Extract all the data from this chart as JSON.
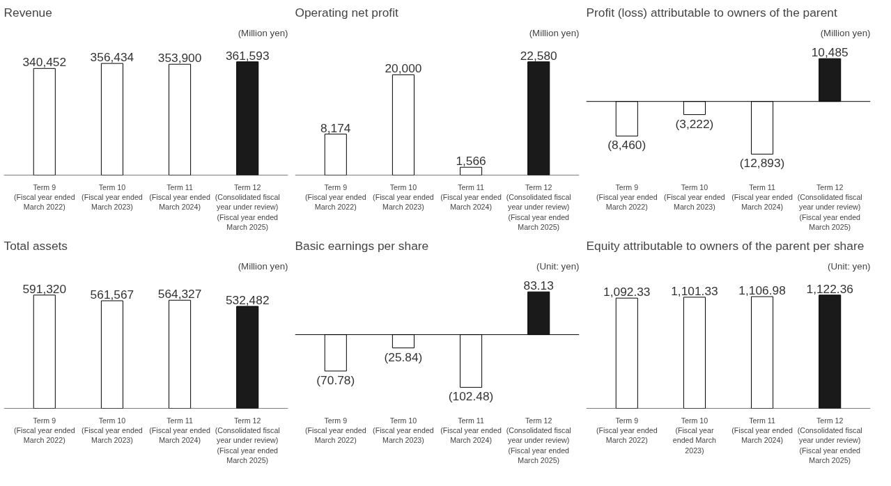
{
  "chart_data": [
    {
      "type": "bar",
      "title": "Revenue",
      "subtitle": "(Million yen)",
      "categories": [
        "Term 9\n(Fiscal year ended\nMarch 2022)",
        "Term 10\n(Fiscal year ended\nMarch 2023)",
        "Term 11\n(Fiscal year ended\nMarch 2024)",
        "Term 12\n(Consolidated fiscal\nyear under review)\n(Fiscal year ended\nMarch 2025)"
      ],
      "values": [
        340452,
        356434,
        353900,
        361593
      ],
      "value_labels": [
        "340,452",
        "356,434",
        "353,900",
        "361,593"
      ],
      "colors": [
        "#ffffff",
        "#ffffff",
        "#ffffff",
        "#1a1a1a"
      ]
    },
    {
      "type": "bar",
      "title": "Operating net profit",
      "subtitle": "(Million yen)",
      "categories": [
        "Term 9\n(Fiscal year ended\nMarch 2022)",
        "Term 10\n(Fiscal year ended\nMarch 2023)",
        "Term 11\n(Fiscal year ended\nMarch 2024)",
        "Term 12\n(Consolidated fiscal\nyear under review)\n(Fiscal year ended\nMarch 2025)"
      ],
      "values": [
        8174,
        20000,
        1566,
        22580
      ],
      "value_labels": [
        "8,174",
        "20,000",
        "1,566",
        "22,580"
      ],
      "colors": [
        "#ffffff",
        "#ffffff",
        "#ffffff",
        "#1a1a1a"
      ]
    },
    {
      "type": "bar",
      "title": "Profit (loss) attributable to owners of the parent",
      "subtitle": "(Million yen)",
      "categories": [
        "Term 9\n(Fiscal year ended\nMarch 2022)",
        "Term 10\n(Fiscal year ended\nMarch 2023)",
        "Term 11\n(Fiscal year ended\nMarch 2024)",
        "Term 12\n(Consolidated fiscal\nyear under review)\n(Fiscal year ended\nMarch 2025)"
      ],
      "values": [
        -8460,
        -3222,
        -12893,
        10485
      ],
      "value_labels": [
        "(8,460)",
        "(3,222)",
        "(12,893)",
        "10,485"
      ],
      "colors": [
        "#ffffff",
        "#ffffff",
        "#ffffff",
        "#1a1a1a"
      ]
    },
    {
      "type": "bar",
      "title": "Total assets",
      "subtitle": "(Million yen)",
      "categories": [
        "Term 9\n(Fiscal year ended\nMarch 2022)",
        "Term 10\n(Fiscal year ended\nMarch 2023)",
        "Term 11\n(Fiscal year ended\nMarch 2024)",
        "Term 12\n(Consolidated fiscal\nyear under review)\n(Fiscal year ended\nMarch 2025)"
      ],
      "values": [
        591320,
        561567,
        564327,
        532482
      ],
      "value_labels": [
        "591,320",
        "561,567",
        "564,327",
        "532,482"
      ],
      "colors": [
        "#ffffff",
        "#ffffff",
        "#ffffff",
        "#1a1a1a"
      ]
    },
    {
      "type": "bar",
      "title": "Basic earnings per share",
      "subtitle": "(Unit: yen)",
      "categories": [
        "Term 9\n(Fiscal year ended\nMarch 2022)",
        "Term 10\n(Fiscal year ended\nMarch 2023)",
        "Term 11\n(Fiscal year ended\nMarch 2024)",
        "Term 12\n(Consolidated fiscal\nyear under review)\n(Fiscal year ended\nMarch 2025)"
      ],
      "values": [
        -70.78,
        -25.84,
        -102.48,
        83.13
      ],
      "value_labels": [
        "(70.78)",
        "(25.84)",
        "(102.48)",
        "83.13"
      ],
      "colors": [
        "#ffffff",
        "#ffffff",
        "#ffffff",
        "#1a1a1a"
      ]
    },
    {
      "type": "bar",
      "title": "Equity attributable to owners of the parent per share",
      "subtitle": "(Unit: yen)",
      "categories": [
        "Term 9\n(Fiscal year ended\nMarch 2022)",
        "Term 10\n(Fiscal year\nended March\n2023)",
        "Term 11\n(Fiscal year ended\nMarch 2024)",
        "Term 12\n(Consolidated fiscal\nyear under review)\n(Fiscal year ended\nMarch 2025)"
      ],
      "values": [
        1092.33,
        1101.33,
        1106.98,
        1122.36
      ],
      "value_labels": [
        "1,092.33",
        "1,101.33",
        "1,106.98",
        "1,122.36"
      ],
      "colors": [
        "#ffffff",
        "#ffffff",
        "#ffffff",
        "#1a1a1a"
      ]
    }
  ]
}
